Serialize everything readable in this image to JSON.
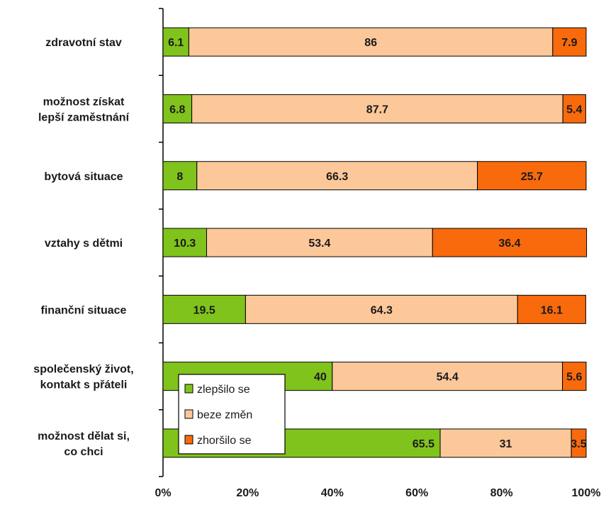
{
  "chart_data": {
    "type": "bar",
    "orientation": "horizontal",
    "stacked": "percent",
    "categories": [
      [
        "zdravotní stav"
      ],
      [
        "možnost získat",
        "lepší zaměstnání"
      ],
      [
        "bytová situace"
      ],
      [
        "vztahy s dětmi"
      ],
      [
        "finanční situace"
      ],
      [
        "společenský život,",
        "kontakt s přáteli"
      ],
      [
        "možnost dělat si,",
        "co chci"
      ]
    ],
    "series": [
      {
        "name": "zlepšilo se",
        "color": "#80c31c",
        "values": [
          6.1,
          6.8,
          8,
          10.3,
          19.5,
          40,
          65.5
        ]
      },
      {
        "name": "beze změn",
        "color": "#fcc89a",
        "values": [
          86,
          87.7,
          66.3,
          53.4,
          64.3,
          54.4,
          31
        ]
      },
      {
        "name": "zhoršilo se",
        "color": "#f86a0c",
        "values": [
          7.9,
          5.4,
          25.7,
          36.4,
          16.1,
          5.6,
          3.5
        ]
      }
    ],
    "xlim": [
      0,
      100
    ],
    "xticks": [
      "0%",
      "20%",
      "40%",
      "60%",
      "80%",
      "100%"
    ],
    "legend": "inside-bottom-left",
    "grid": false
  }
}
